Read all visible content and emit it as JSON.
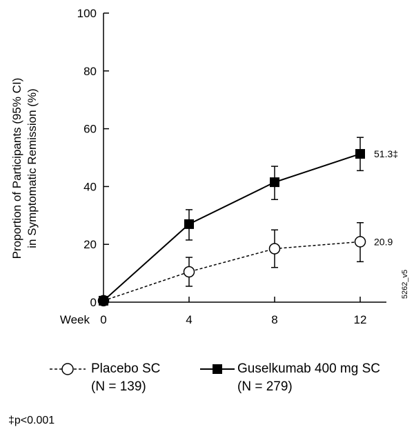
{
  "chart_data": {
    "type": "line",
    "ylabel_line1": "Proportion of Participants (95% CI)",
    "ylabel_line2": "in Symptomatic Remission (%)",
    "xlabel_prefix": "Week",
    "x": [
      0,
      4,
      8,
      12
    ],
    "xticks": [
      "0",
      "4",
      "8",
      "12"
    ],
    "yticks": [
      "0",
      "20",
      "40",
      "60",
      "80",
      "100"
    ],
    "ylim": [
      0,
      100
    ],
    "xlim": [
      0,
      13.5
    ],
    "grid": false,
    "series": [
      {
        "name": "Placebo SC",
        "n_label": "(N = 139)",
        "marker": "open-circle",
        "line_style": "dashed",
        "values": [
          0.5,
          10.5,
          18.5,
          20.9
        ],
        "ci_low": [
          0.5,
          5.5,
          12,
          14
        ],
        "ci_high": [
          0.5,
          15.5,
          25,
          27.5
        ],
        "end_label": "20.9"
      },
      {
        "name": "Guselkumab 400 mg SC",
        "n_label": "(N = 279)",
        "marker": "filled-square",
        "line_style": "solid",
        "values": [
          0.5,
          27,
          41.5,
          51.3
        ],
        "ci_low": [
          0.5,
          21.5,
          35.5,
          45.5
        ],
        "ci_high": [
          0.5,
          32,
          47,
          57
        ],
        "end_label": "51.3‡"
      }
    ],
    "side_code": "5262_v5",
    "footnote": "‡p<0.001"
  }
}
